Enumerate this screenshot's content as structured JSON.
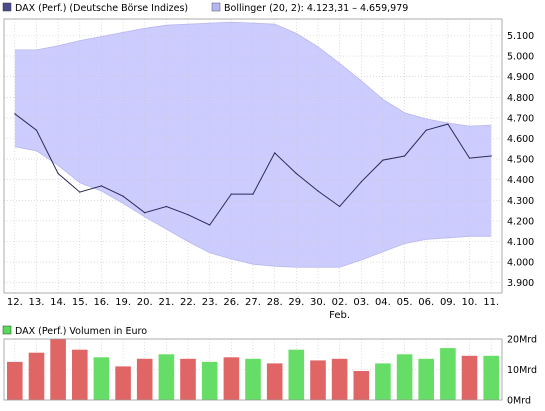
{
  "chart_data": [
    {
      "type": "line",
      "legend": {
        "placement": "top-left",
        "entries": [
          {
            "label": "DAX (Perf.) (Deutsche Börse Indizes)",
            "color": "#4a4a8c"
          },
          {
            "label": "Bollinger (20, 2): 4.123,31 – 4.659,979",
            "color": "#b6b6f5"
          }
        ]
      },
      "categories": [
        "12.",
        "13.",
        "14.",
        "15.",
        "16.",
        "19.",
        "20.",
        "21.",
        "22.",
        "23.",
        "26.",
        "27.",
        "28.",
        "29.",
        "30.",
        "02.",
        "03.",
        "04.",
        "05.",
        "06.",
        "09.",
        "10.",
        "11."
      ],
      "month_marker": {
        "index": 15,
        "label": "Feb."
      },
      "ylim": [
        3850,
        5180
      ],
      "yticks": [
        3900,
        4000,
        4100,
        4200,
        4300,
        4400,
        4500,
        4600,
        4700,
        4800,
        4900,
        5000,
        5100
      ],
      "ytick_labels": [
        "3.900",
        "4.000",
        "4.100",
        "4.200",
        "4.300",
        "4.400",
        "4.500",
        "4.600",
        "4.700",
        "4.800",
        "4.900",
        "5.000",
        "5.100"
      ],
      "grid": true,
      "series": [
        {
          "name": "DAX (Perf.) (Deutsche Börse Indizes)",
          "color": "#2b2b55",
          "values": [
            4720,
            4640,
            4430,
            4340,
            4370,
            4320,
            4240,
            4270,
            4230,
            4180,
            4330,
            4330,
            4530,
            4430,
            4345,
            4270,
            4390,
            4495,
            4515,
            4640,
            4670,
            4505,
            4515
          ]
        },
        {
          "name": "Bollinger (20, 2): 4.123,31 – 4.659,979",
          "color": "#ccccff",
          "band": true,
          "upper": [
            5030,
            5030,
            5050,
            5075,
            5095,
            5115,
            5135,
            5150,
            5155,
            5160,
            5165,
            5160,
            5155,
            5110,
            5045,
            4965,
            4880,
            4790,
            4725,
            4695,
            4675,
            4660,
            4665
          ],
          "lower": [
            4560,
            4540,
            4470,
            4385,
            4345,
            4285,
            4220,
            4160,
            4100,
            4045,
            4015,
            3990,
            3980,
            3975,
            3975,
            3975,
            4010,
            4050,
            4090,
            4110,
            4118,
            4125,
            4125
          ]
        }
      ]
    },
    {
      "type": "bar",
      "legend": {
        "placement": "top-left",
        "entries": [
          {
            "label": "DAX (Perf.) Volumen in Euro",
            "color": "#55dd55"
          }
        ]
      },
      "ylim": [
        0,
        20
      ],
      "yticks": [
        0,
        10,
        20
      ],
      "ytick_labels": [
        "0Mrd",
        "10Mrd",
        "20Mrd"
      ],
      "grid": true,
      "colors": {
        "up": "#66dd66",
        "down": "#e06666"
      },
      "values": [
        12.5,
        15.5,
        20,
        16.5,
        14,
        11,
        13.5,
        15,
        13.5,
        12.5,
        14,
        13.5,
        12,
        16.5,
        13,
        13.5,
        9.5,
        12,
        15,
        13.5,
        17,
        14.5,
        14.5
      ],
      "direction": [
        "down",
        "down",
        "down",
        "down",
        "up",
        "down",
        "down",
        "up",
        "down",
        "up",
        "down",
        "up",
        "down",
        "up",
        "down",
        "down",
        "down",
        "up",
        "up",
        "up",
        "up",
        "down",
        "up"
      ]
    }
  ]
}
